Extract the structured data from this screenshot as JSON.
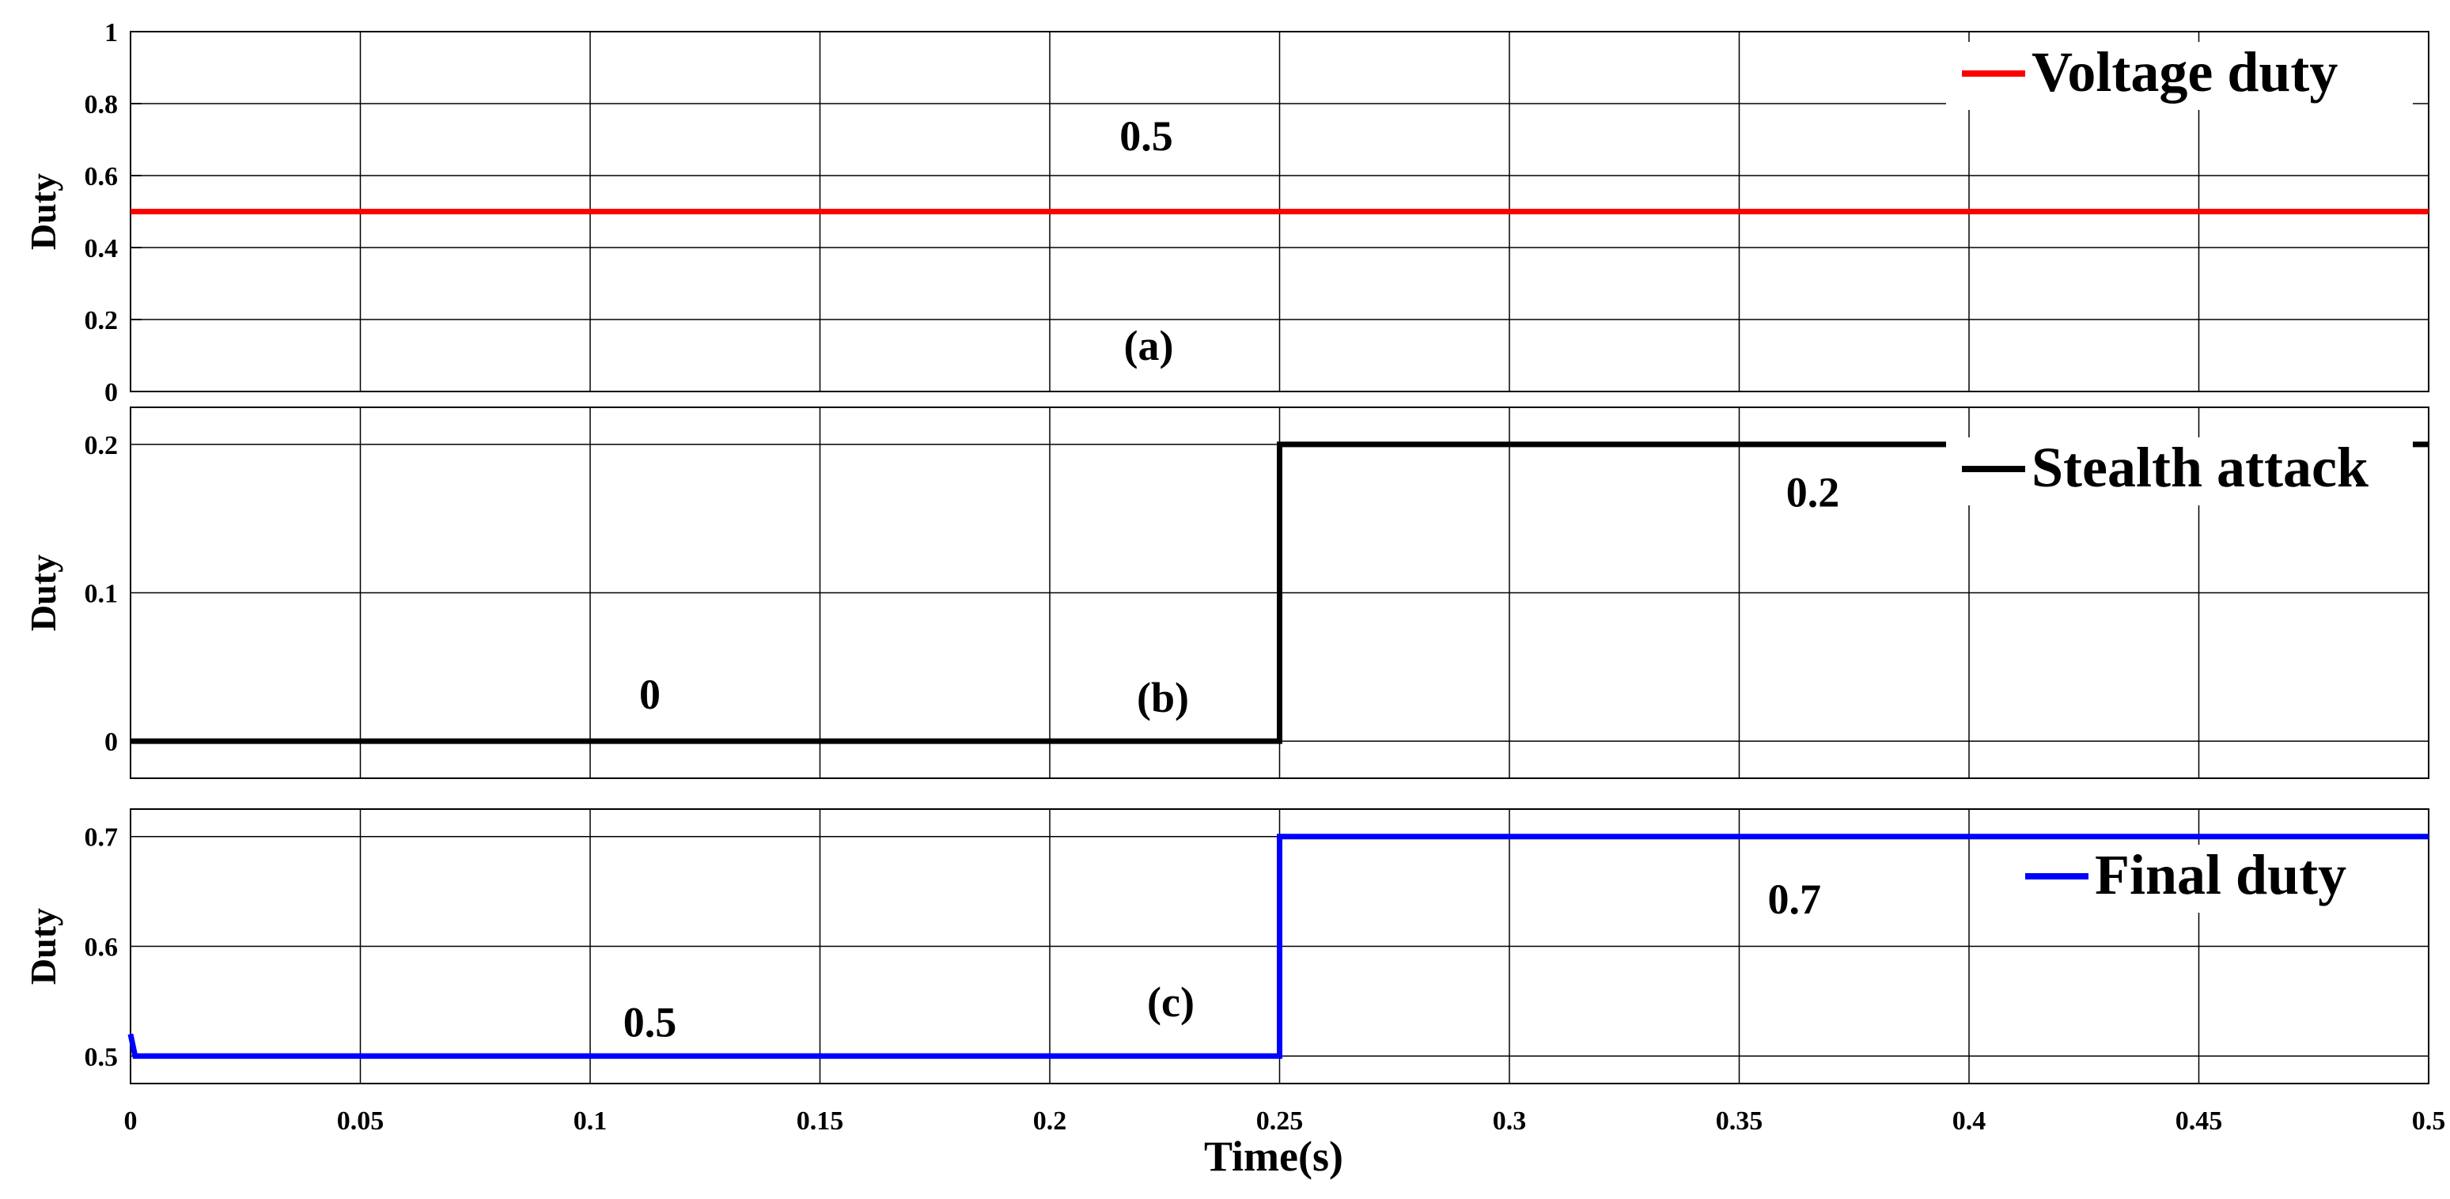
{
  "chart_data": [
    {
      "id": "a",
      "type": "line",
      "panel_label": "(a)",
      "ylabel": "Duty",
      "ylim": [
        0,
        1
      ],
      "yticks": [
        0,
        0.2,
        0.4,
        0.6,
        0.8,
        1
      ],
      "ytick_labels": [
        "0",
        "0.2",
        "0.4",
        "0.6",
        "0.8",
        "1"
      ],
      "xlim": [
        0,
        0.5
      ],
      "grid": true,
      "legend_position": "top-right",
      "series": [
        {
          "name": "Voltage duty",
          "color": "#ff0000",
          "x": [
            0,
            0.5
          ],
          "y": [
            0.5,
            0.5
          ]
        }
      ],
      "annotations": [
        {
          "text": "0.5",
          "x": 0.221,
          "y": 0.67
        }
      ]
    },
    {
      "id": "b",
      "type": "line",
      "panel_label": "(b)",
      "ylabel": "Duty",
      "ylim": [
        -0.025,
        0.225
      ],
      "yticks": [
        0,
        0.1,
        0.2
      ],
      "ytick_labels": [
        "0",
        "0.1",
        "0.2"
      ],
      "xlim": [
        0,
        0.5
      ],
      "grid": true,
      "legend_position": "top-right",
      "series": [
        {
          "name": "Stealth attack",
          "color": "#000000",
          "x": [
            0,
            0.25,
            0.25,
            0.5
          ],
          "y": [
            0,
            0,
            0.2,
            0.2
          ]
        }
      ],
      "annotations": [
        {
          "text": "0",
          "x": 0.113,
          "y": 0.022
        },
        {
          "text": "0.2",
          "x": 0.366,
          "y": 0.158
        }
      ]
    },
    {
      "id": "c",
      "type": "line",
      "panel_label": "(c)",
      "ylabel": "Duty",
      "ylim": [
        0.475,
        0.725
      ],
      "yticks": [
        0.5,
        0.6,
        0.7
      ],
      "ytick_labels": [
        "0.5",
        "0.6",
        "0.7"
      ],
      "xlim": [
        0,
        0.5
      ],
      "xticks": [
        0,
        0.05,
        0.1,
        0.15,
        0.2,
        0.25,
        0.3,
        0.35,
        0.4,
        0.45,
        0.5
      ],
      "xtick_labels": [
        "0",
        "0.05",
        "0.1",
        "0.15",
        "0.2",
        "0.25",
        "0.3",
        "0.35",
        "0.4",
        "0.45",
        "0.5"
      ],
      "xlabel": "Time(s)",
      "grid": true,
      "legend_position": "top-right",
      "series": [
        {
          "name": "Final duty",
          "color": "#0000ff",
          "x": [
            0,
            0.001,
            0.25,
            0.25,
            0.5
          ],
          "y": [
            0.52,
            0.5,
            0.5,
            0.7,
            0.7
          ]
        }
      ],
      "annotations": [
        {
          "text": "0.5",
          "x": 0.113,
          "y": 0.518
        },
        {
          "text": "0.7",
          "x": 0.362,
          "y": 0.63
        }
      ]
    }
  ]
}
